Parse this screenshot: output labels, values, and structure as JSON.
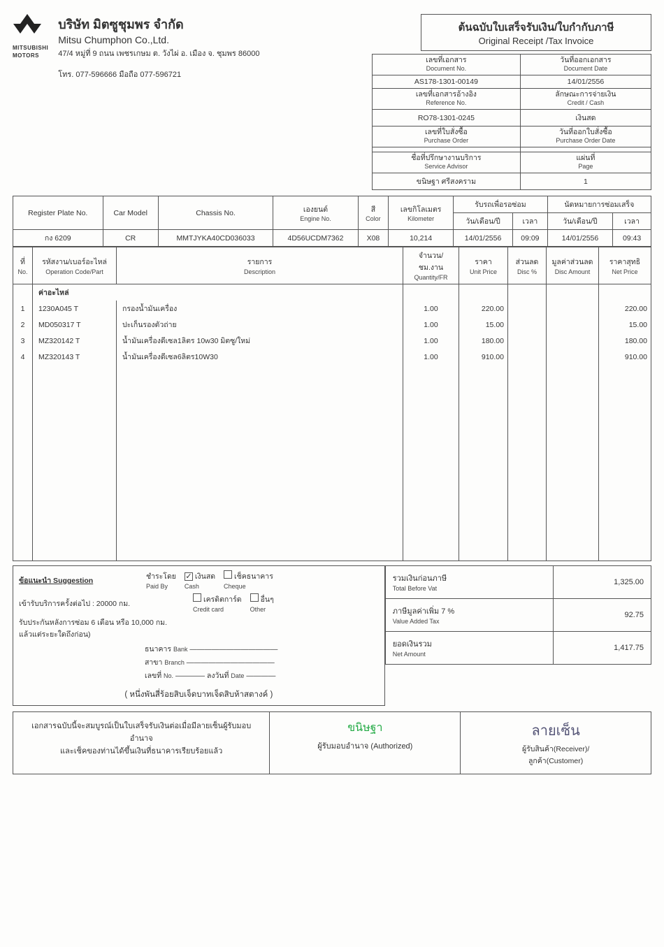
{
  "company": {
    "logo_brand": "MITSUBISHI",
    "logo_sub": "MOTORS",
    "name_th": "บริษัท มิตซูชุมพร จำกัด",
    "name_en": "Mitsu Chumphon Co.,Ltd.",
    "address": "47/4 หมู่ที่ 9 ถนน เพชรเกษม ต. วังไผ่ อ. เมือง จ. ชุมพร 86000",
    "tel": "โทร. 077-596666 มือถือ 077-596721"
  },
  "receipt_title": {
    "th": "ต้นฉบับใบเสร็จรับเงิน/ใบกำกับภาษี",
    "en": "Original Receipt /Tax Invoice"
  },
  "topright": {
    "doc_no": {
      "label_th": "เลขที่เอกสาร",
      "label_en": "Document No.",
      "value": "AS178-1301-00149"
    },
    "doc_date": {
      "label_th": "วันที่ออกเอกสาร",
      "label_en": "Document Date",
      "value": "14/01/2556"
    },
    "ref_no": {
      "label_th": "เลขที่เอกสารอ้างอิง",
      "label_en": "Reference No.",
      "value": "RO78-1301-0245"
    },
    "pay_char": {
      "label_th": "ลักษณะการจ่ายเงิน",
      "label_en": "Credit / Cash",
      "value": "เงินสด"
    },
    "po_no": {
      "label_th": "เลขที่ใบสั่งซื้อ",
      "label_en": "Purchase Order",
      "value": ""
    },
    "po_date": {
      "label_th": "วันที่ออกใบสั่งซื้อ",
      "label_en": "Purchase Order Date",
      "value": ""
    },
    "advisor": {
      "label_th": "ชื่อที่ปรึกษางานบริการ",
      "label_en": "Service Advisor",
      "value": "ขนิษฐา ศรีสงคราม"
    },
    "page": {
      "label_th": "แผ่นที่",
      "label_en": "Page",
      "value": "1"
    }
  },
  "meta": {
    "headers": {
      "plate": "เองยนต์",
      "color_th": "สี",
      "km_th": "เลขกิโลเมตร",
      "recv_th": "รับรถเพื่อรอซ่อม",
      "note_th": "นัดหมายการซ่อมเสร็จ",
      "plate_lbl": "Register Plate No.",
      "model_lbl": "Car Model",
      "chassis_lbl": "Chassis No.",
      "engine_lbl": "Engine No.",
      "color_lbl": "Color",
      "km_lbl": "Kilometer",
      "date_lbl": "วัน/เดือน/ปี",
      "time_lbl": "เวลา"
    },
    "plate": "กง 6209",
    "model": "CR",
    "chassis": "MMTJYKA40CD036033",
    "engine": "4D56UCDM7362",
    "color": "X08",
    "km": "10,214",
    "recv_date": "14/01/2556",
    "recv_time": "09:09",
    "done_date": "14/01/2556",
    "done_time": "09:43"
  },
  "items_header": {
    "no_th": "ที่",
    "no_en": "No.",
    "code_th": "รหัสงาน/เบอร์อะไหล่",
    "code_en": "Operation Code/Part",
    "desc_th": "รายการ",
    "desc_en": "Description",
    "qty_th": "จำนวน/ชม.งาน",
    "qty_en": "Quantity/FR",
    "price_th": "ราคา",
    "price_en": "Unit Price",
    "disc_th": "ส่วนลด",
    "disc_en": "Disc %",
    "discamt_th": "มูลค่าส่วนลด",
    "discamt_en": "Disc Amount",
    "net_th": "ราคาสุทธิ",
    "net_en": "Net Price"
  },
  "section_label": "ค่าอะไหล่",
  "items": [
    {
      "no": "1",
      "code": "1230A045 T",
      "desc": "กรองน้ำมันเครื่อง",
      "qty": "1.00",
      "price": "220.00",
      "disc": "",
      "discamt": "",
      "net": "220.00"
    },
    {
      "no": "2",
      "code": "MD050317 T",
      "desc": "ปะเก็นรองตัวถ่าย",
      "qty": "1.00",
      "price": "15.00",
      "disc": "",
      "discamt": "",
      "net": "15.00"
    },
    {
      "no": "3",
      "code": "MZ320142 T",
      "desc": "น้ำมันเครื่องดีเซล1ลิตร 10w30 มิตซู/ใหม่",
      "qty": "1.00",
      "price": "180.00",
      "disc": "",
      "discamt": "",
      "net": "180.00"
    },
    {
      "no": "4",
      "code": "MZ320143 T",
      "desc": "น้ำมันเครื่องดีเซล6ลิตร10W30",
      "qty": "1.00",
      "price": "910.00",
      "disc": "",
      "discamt": "",
      "net": "910.00"
    }
  ],
  "suggestion": {
    "title": "ข้อแนะนำ Suggestion",
    "line1": "เข้ารับบริการครั้งต่อไป : 20000 กม.",
    "line2": "รับประกันหลังการซ่อม 6 เดือน หรือ 10,000 กม.",
    "line3": "แล้วแต่ระยะใดถึงก่อน)"
  },
  "payment": {
    "paid_by_th": "ชำระโดย",
    "paid_by_en": "Paid By",
    "cash_th": "เงินสด",
    "cash_en": "Cash",
    "cash_checked": true,
    "cheque_th": "เช็คธนาคาร",
    "cheque_en": "Cheque",
    "credit_th": "เครดิตการ์ด",
    "credit_en": "Credit card",
    "other_th": "อื่นๆ",
    "other_en": "Other",
    "bank_th": "ธนาคาร",
    "bank_en": "Bank",
    "branch_th": "สาขา",
    "branch_en": "Branch",
    "no_th": "เลขที่",
    "no_en": "No.",
    "date_th": "ลงวันที่",
    "date_en": "Date"
  },
  "totals": {
    "subtotal_th": "รวมเงินก่อนภาษี",
    "subtotal_en": "Total Before Vat",
    "subtotal": "1,325.00",
    "vat_th": "ภาษีมูลค่าเพิ่ม 7 %",
    "vat_en": "Value Added Tax",
    "vat": "92.75",
    "net_th": "ยอดเงินรวม",
    "net_en": "Net Amount",
    "net": "1,417.75"
  },
  "amount_words": "( หนึ่งพันสี่ร้อยสิบเจ็ดบาทเจ็ดสิบห้าสตางค์ )",
  "cert": {
    "line1": "เอกสารฉบับนี้จะสมบูรณ์เป็นใบเสร็จรับเงินต่อเมื่อมีลายเซ็นผู้รับมอบอำนาจ",
    "line2": "และเช็คของท่านได้ขึ้นเงินที่ธนาคารเรียบร้อยแล้ว",
    "auth_label": "ผู้รับมอบอำนาจ (Authorized)",
    "recv_label": "ผู้รับสินค้า(Receiver)/",
    "cust_label": "ลูกค้า(Customer)"
  },
  "colors": {
    "border": "#555555",
    "text": "#333333",
    "bg": "#fdfdfc",
    "sig_green": "#2a9d4a",
    "sig_blue": "#4a5a99"
  }
}
